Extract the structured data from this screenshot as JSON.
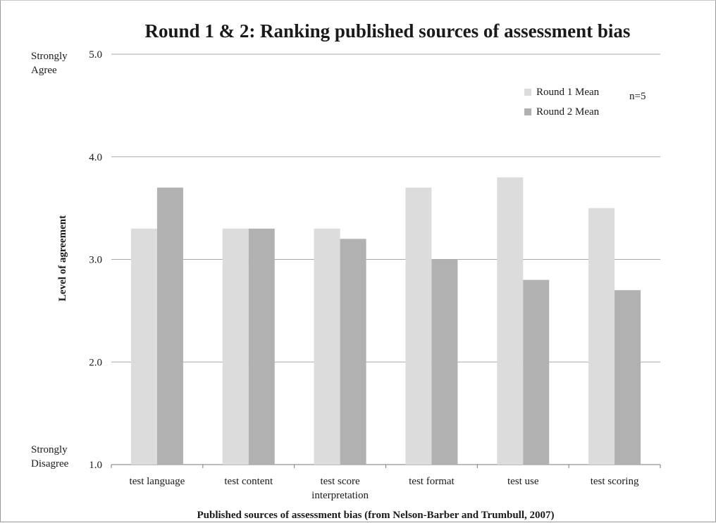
{
  "chart_data": {
    "type": "bar",
    "title": "Round 1 & 2: Ranking published sources of assessment bias",
    "xlabel": "Published sources of assessment bias (from Nelson-Barber and Trumbull, 2007)",
    "ylabel": "Level of agreement",
    "ylim": [
      1.0,
      5.0
    ],
    "yticks": [
      "1.0",
      "2.0",
      "3.0",
      "4.0",
      "5.0"
    ],
    "y_top_label": [
      "Strongly",
      "Agree"
    ],
    "y_bottom_label": [
      "Strongly",
      "Disagree"
    ],
    "categories": [
      [
        "test language"
      ],
      [
        "test content"
      ],
      [
        "test score",
        "interpretation"
      ],
      [
        "test format"
      ],
      [
        "test use"
      ],
      [
        "test scoring"
      ]
    ],
    "series": [
      {
        "name": "Round 1 Mean",
        "color": "#dcdcdc",
        "values": [
          3.3,
          3.3,
          3.3,
          3.7,
          3.8,
          3.5
        ]
      },
      {
        "name": "Round 2 Mean",
        "color": "#b1b1b1",
        "values": [
          3.7,
          3.3,
          3.2,
          3.0,
          2.8,
          2.7
        ]
      }
    ],
    "annotation": "n=5",
    "grid": true,
    "legend_position": "top-right"
  }
}
